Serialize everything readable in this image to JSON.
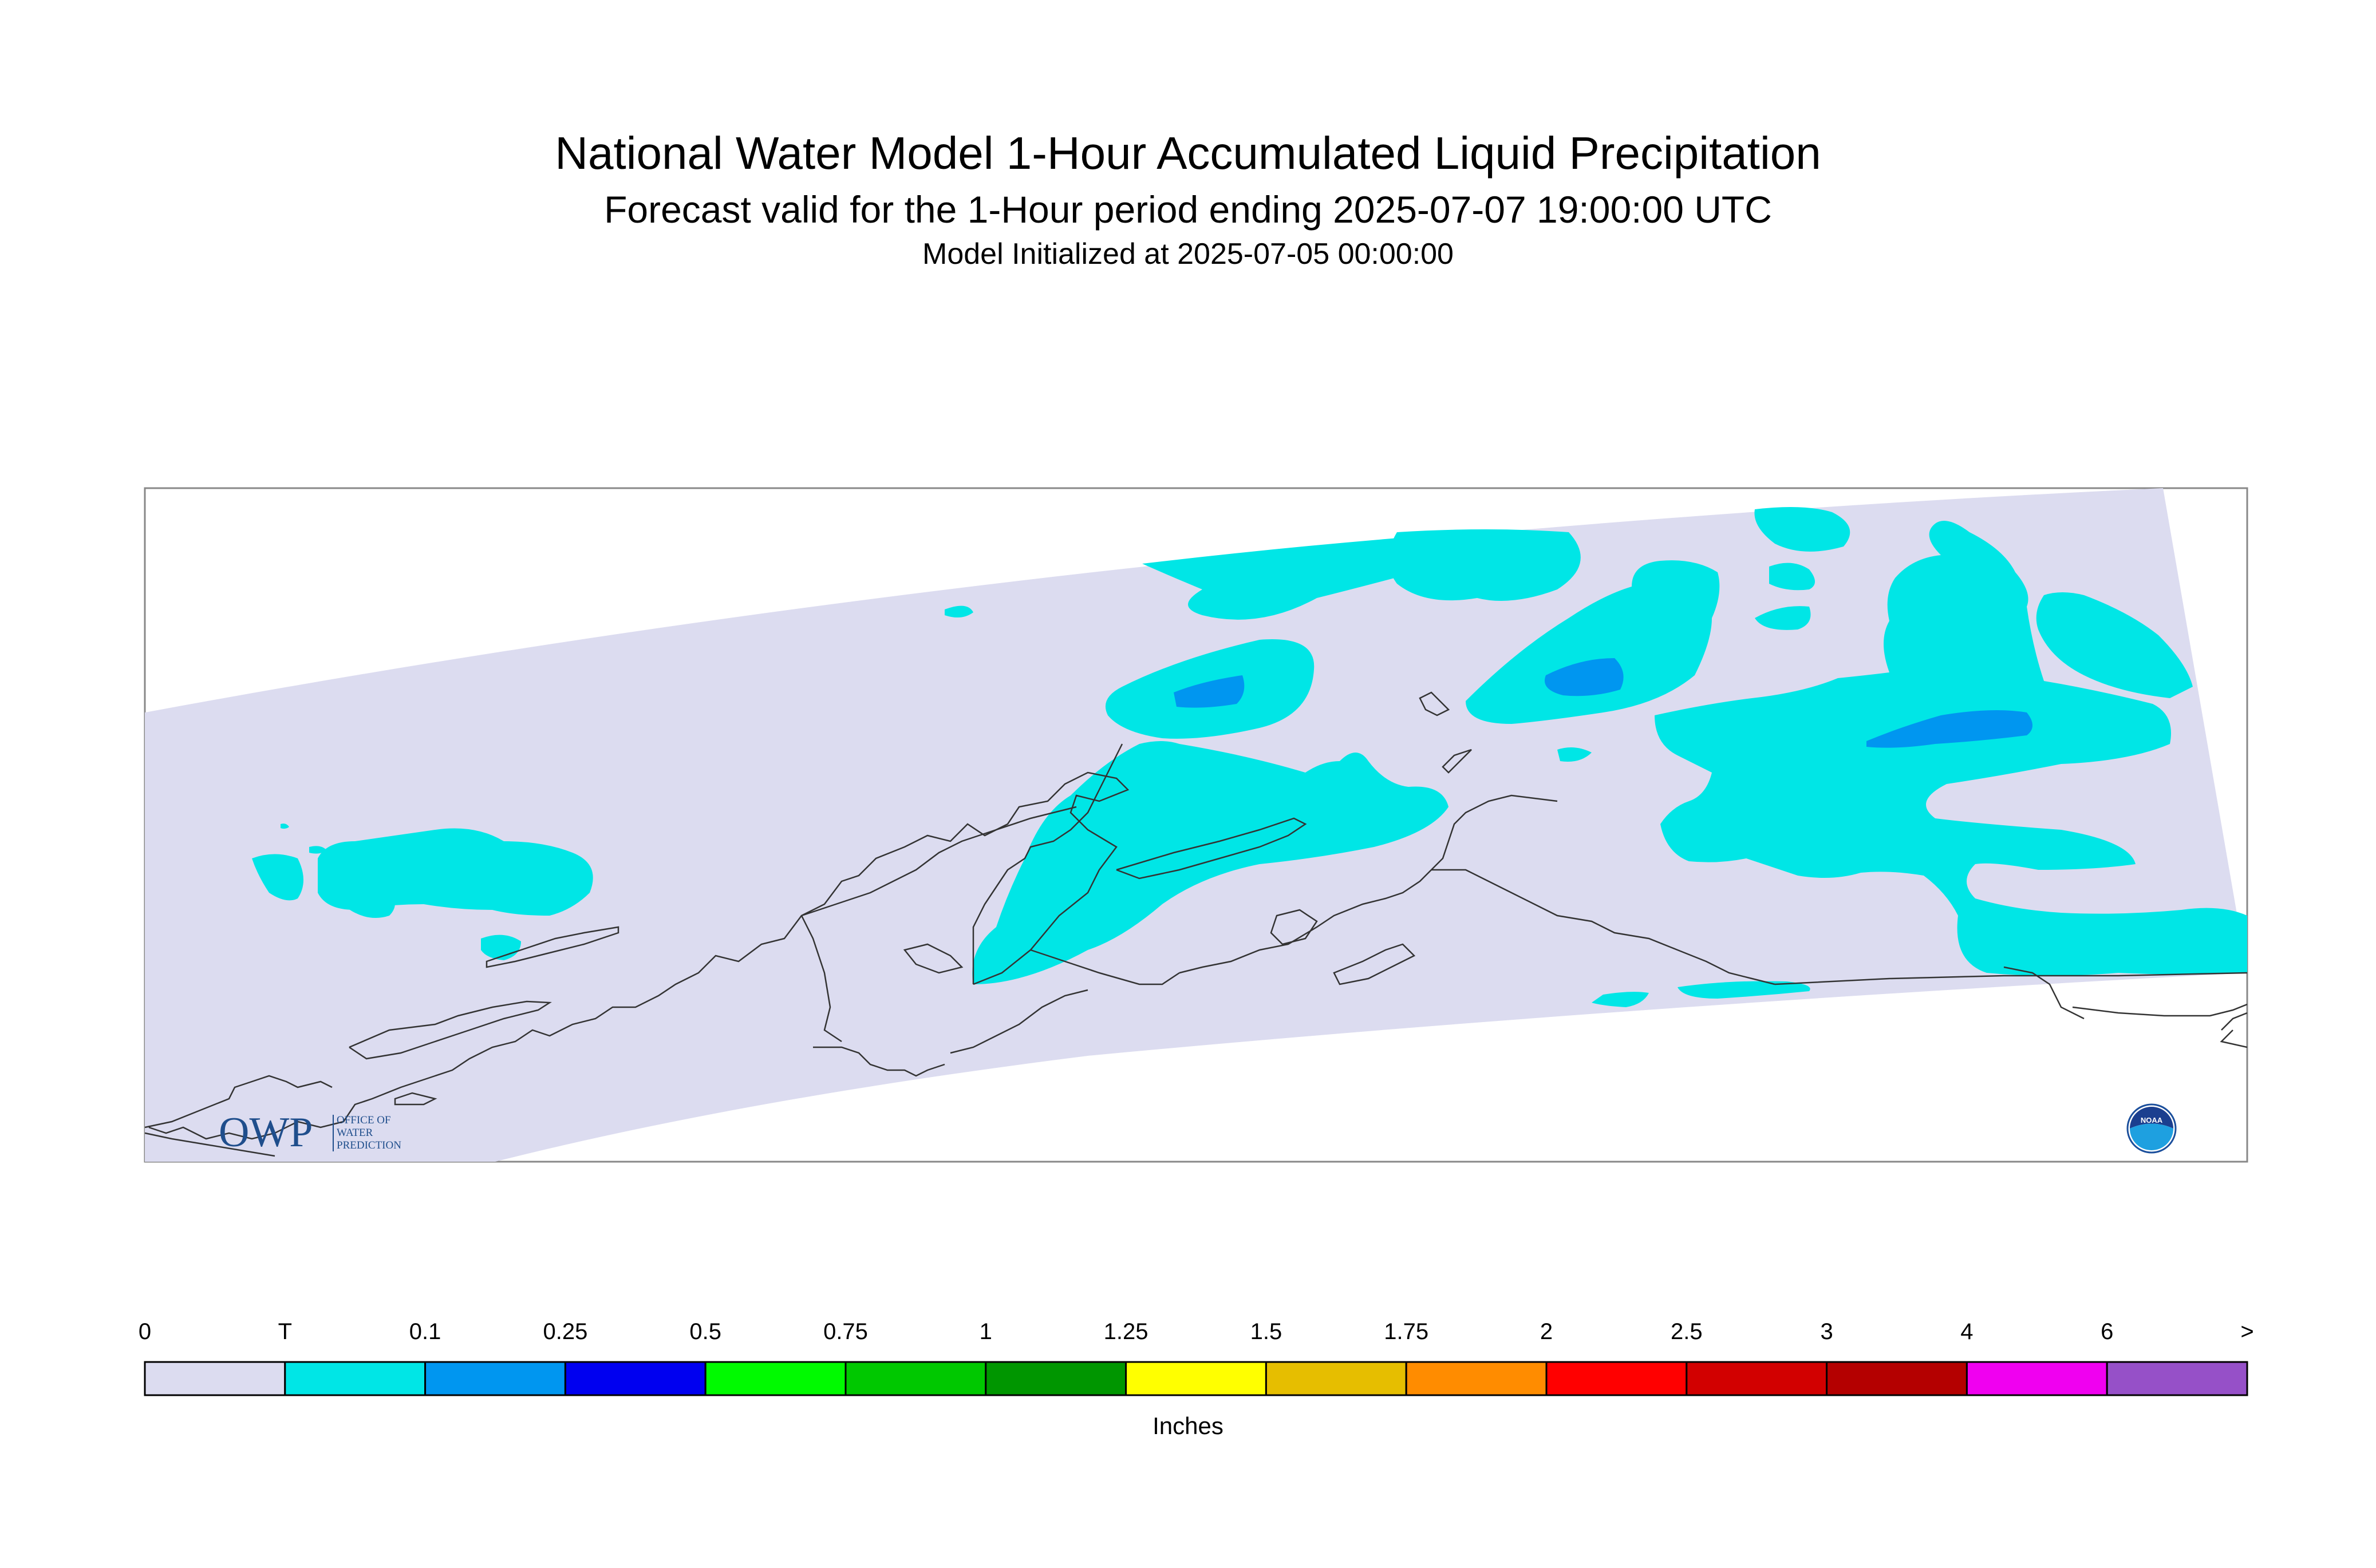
{
  "title": "National Water Model 1-Hour Accumulated Liquid Precipitation",
  "subtitle": "Forecast valid for the 1-Hour period ending 2025-07-07 19:00:00 UTC",
  "init_line": "Model Initialized at 2025-07-05 00:00:00",
  "legend": {
    "units": "Inches",
    "labels": [
      "0",
      "T",
      "0.1",
      "0.25",
      "0.5",
      "0.75",
      "1",
      "1.25",
      "1.5",
      "1.75",
      "2",
      "2.5",
      "3",
      "4",
      "6",
      ">"
    ],
    "colors": [
      "#dcdcf0",
      "#00e6e6",
      "#0096f0",
      "#0000f0",
      "#00fa00",
      "#00c800",
      "#009600",
      "#ffff00",
      "#e6be00",
      "#ff8c00",
      "#ff0000",
      "#d20000",
      "#b40000",
      "#f000f0",
      "#9650c8"
    ]
  },
  "logos": {
    "owp_letters": "OWP",
    "owp_text": [
      "OFFICE OF",
      "WATER",
      "PREDICTION"
    ],
    "noaa_text": "NOAA"
  },
  "colors": {
    "domain": "#dcdcf0",
    "trace": "#00e6e6",
    "light_blue": "#0096f0",
    "coastline": "#333333"
  }
}
